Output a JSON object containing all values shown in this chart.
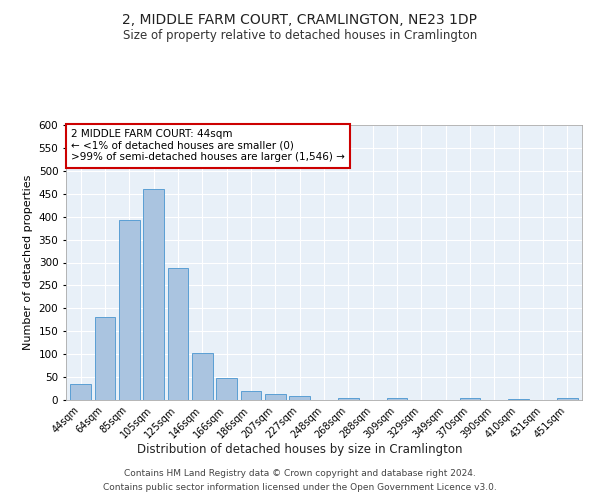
{
  "title": "2, MIDDLE FARM COURT, CRAMLINGTON, NE23 1DP",
  "subtitle": "Size of property relative to detached houses in Cramlington",
  "xlabel": "Distribution of detached houses by size in Cramlington",
  "ylabel": "Number of detached properties",
  "categories": [
    "44sqm",
    "64sqm",
    "85sqm",
    "105sqm",
    "125sqm",
    "146sqm",
    "166sqm",
    "186sqm",
    "207sqm",
    "227sqm",
    "248sqm",
    "268sqm",
    "288sqm",
    "309sqm",
    "329sqm",
    "349sqm",
    "370sqm",
    "390sqm",
    "410sqm",
    "431sqm",
    "451sqm"
  ],
  "values": [
    35,
    182,
    393,
    460,
    287,
    103,
    49,
    20,
    13,
    8,
    0,
    5,
    0,
    5,
    0,
    0,
    4,
    0,
    3,
    0,
    4
  ],
  "bar_color": "#aac4e0",
  "bar_edge_color": "#5a9fd4",
  "annotation_box_text": "2 MIDDLE FARM COURT: 44sqm\n← <1% of detached houses are smaller (0)\n>99% of semi-detached houses are larger (1,546) →",
  "annotation_box_color": "#ffffff",
  "annotation_box_edge_color": "#cc0000",
  "bg_color": "#e8f0f8",
  "grid_color": "#ffffff",
  "footer_line1": "Contains HM Land Registry data © Crown copyright and database right 2024.",
  "footer_line2": "Contains public sector information licensed under the Open Government Licence v3.0.",
  "ylim": [
    0,
    600
  ],
  "yticks": [
    0,
    50,
    100,
    150,
    200,
    250,
    300,
    350,
    400,
    450,
    500,
    550,
    600
  ]
}
